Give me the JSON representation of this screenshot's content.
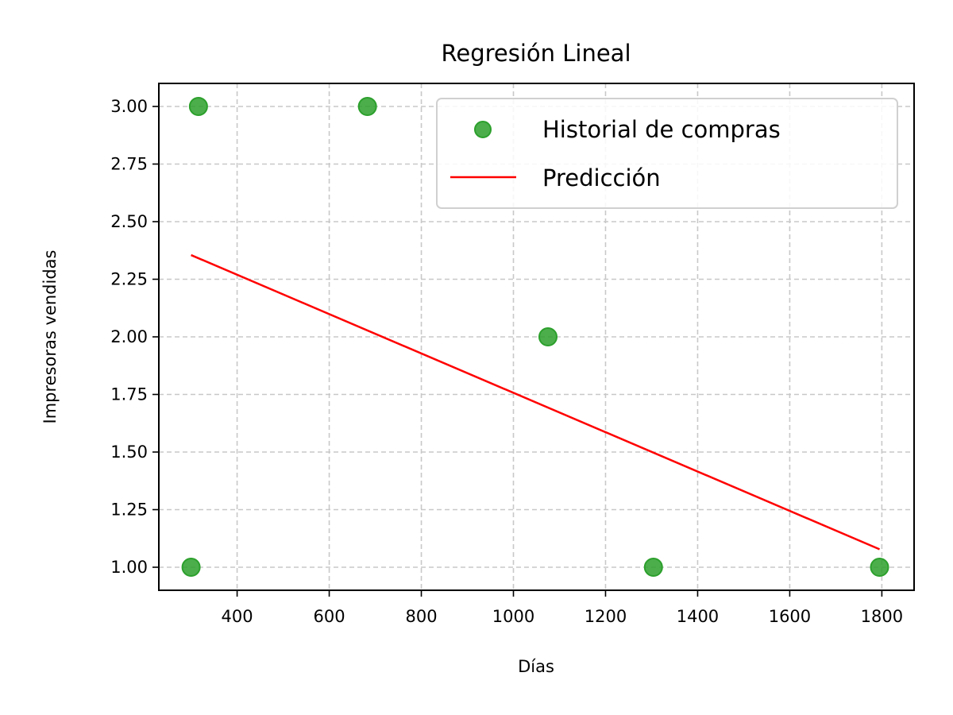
{
  "chart_data": {
    "type": "scatter",
    "title": "Regresión Lineal",
    "xlabel": "Días",
    "ylabel": "Impresoras vendidas",
    "xlim": [
      230,
      1870
    ],
    "ylim": [
      0.9,
      3.1
    ],
    "xticks": [
      400,
      600,
      800,
      1000,
      1200,
      1400,
      1600,
      1800
    ],
    "xtick_labels": [
      "400",
      "600",
      "800",
      "1000",
      "1200",
      "1400",
      "1600",
      "1800"
    ],
    "yticks": [
      1.0,
      1.25,
      1.5,
      1.75,
      2.0,
      2.25,
      2.5,
      2.75,
      3.0
    ],
    "ytick_labels": [
      "1.00",
      "1.25",
      "1.50",
      "1.75",
      "2.00",
      "2.25",
      "2.50",
      "2.75",
      "3.00"
    ],
    "grid": true,
    "legend_position": "top-right",
    "series": [
      {
        "name": "Historial de compras",
        "kind": "scatter",
        "color": "#2ca02c",
        "points": [
          {
            "x": 300,
            "y": 1
          },
          {
            "x": 316,
            "y": 3
          },
          {
            "x": 683,
            "y": 3
          },
          {
            "x": 1075,
            "y": 2
          },
          {
            "x": 1304,
            "y": 1
          },
          {
            "x": 1795,
            "y": 1
          }
        ]
      },
      {
        "name": "Predicción",
        "kind": "line",
        "color": "#ff0000",
        "points": [
          {
            "x": 300,
            "y": 2.355
          },
          {
            "x": 1795,
            "y": 1.078
          }
        ]
      }
    ]
  }
}
